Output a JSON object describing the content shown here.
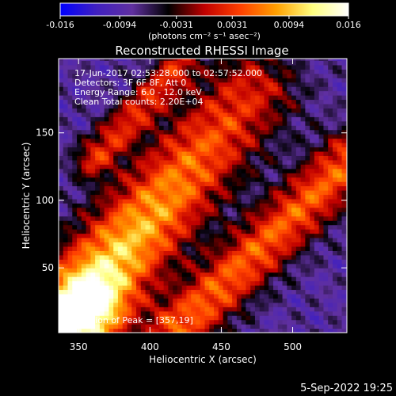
{
  "chart_data": {
    "type": "heatmap",
    "title": "Reconstructed RHESSI Image",
    "xlabel": "Heliocentric X (arcsec)",
    "ylabel": "Heliocentric Y (arcsec)",
    "xlim": [
      336,
      538
    ],
    "ylim": [
      2,
      205
    ],
    "x_ticks": [
      350,
      400,
      450,
      500
    ],
    "y_ticks": [
      50,
      100,
      150
    ],
    "colorbar": {
      "min": -0.016,
      "max": 0.016,
      "ticks": [
        "-0.016",
        "-0.0094",
        "-0.0031",
        "0.0031",
        "0.0094",
        "0.016"
      ],
      "tick_values": [
        -0.016,
        -0.0094,
        -0.0031,
        0.0031,
        0.0094,
        0.016
      ],
      "units": "(photons cm⁻² s⁻¹ asec⁻²)",
      "colormap": [
        "#0000ff",
        "#4020c0",
        "#6030a0",
        "#000000",
        "#c00000",
        "#ff4000",
        "#ffa000",
        "#ffff80",
        "#ffffff"
      ]
    },
    "annotations": {
      "time_range": "17-Jun-2017 02:53:28.000 to 02:57:52.000",
      "detectors": "Detectors: 3F 6F 8F, Att 0",
      "energy": "Energy Range: 6.0 - 12.0 keV",
      "clean": "Clean    Total counts: 2.20E+04",
      "peak": "Position of Peak = [357,19]"
    },
    "peak": [
      357,
      19
    ],
    "ridges": [
      {
        "from": [
          340,
          10
        ],
        "to": [
          470,
          180
        ],
        "width": 34,
        "peak": 0.016
      },
      {
        "from": [
          420,
          5
        ],
        "to": [
          540,
          130
        ],
        "width": 22,
        "peak": 0.007
      },
      {
        "from": [
          360,
          130
        ],
        "to": [
          420,
          200
        ],
        "width": 14,
        "peak": 0.004
      }
    ]
  },
  "footer": {
    "date": "5-Sep-2022 19:25"
  }
}
